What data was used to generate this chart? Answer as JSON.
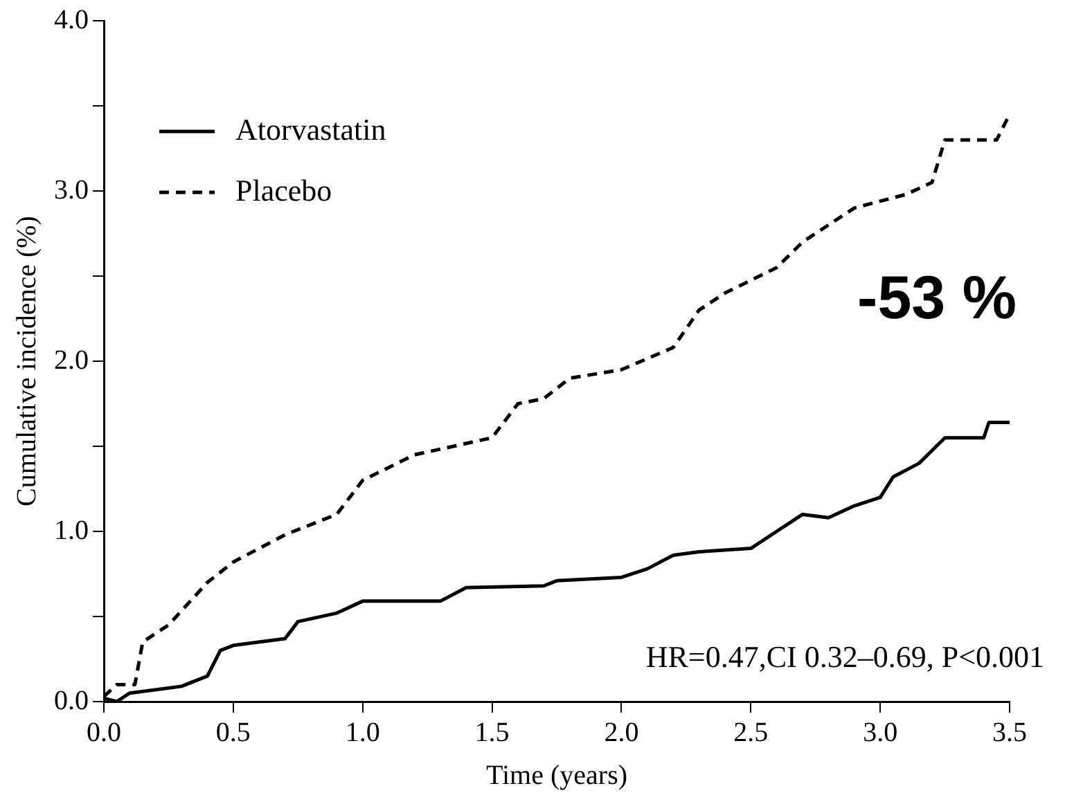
{
  "chart_data": {
    "type": "line",
    "xlabel": "Time (years)",
    "ylabel": "Cumulative incidence (%)",
    "xlim": [
      0,
      3.5
    ],
    "xticks": [
      {
        "value": 0,
        "label": "0.0"
      },
      0.5,
      {
        "value": 1,
        "label": "1.0"
      },
      1.5,
      {
        "value": 2,
        "label": "2.0"
      },
      2.5,
      {
        "value": 3,
        "label": "3.0"
      },
      3.5
    ],
    "ylim": [
      0,
      4
    ],
    "yticks": [
      {
        "value": 0,
        "label": "0.0"
      },
      {
        "value": 0.5,
        "label": null
      },
      {
        "value": 1,
        "label": "1.0"
      },
      {
        "value": 1.5,
        "label": null
      },
      {
        "value": 2,
        "label": "2.0"
      },
      {
        "value": 2.5,
        "label": null
      },
      {
        "value": 3,
        "label": "3.0"
      },
      {
        "value": 3.5,
        "label": null
      },
      {
        "value": 4,
        "label": "4.0"
      }
    ],
    "grid": false,
    "legend": "top left",
    "marker": "none",
    "annotations": [
      "-53 %",
      "HR=0.47,CI 0.32–0.69, P<0.001"
    ],
    "series": [
      {
        "name": "Atorvastatin",
        "color": "#000000",
        "line_style": "solid",
        "x": [
          0,
          0.05,
          0.1,
          0.3,
          0.4,
          0.45,
          0.5,
          0.7,
          0.75,
          0.9,
          1.0,
          1.3,
          1.4,
          1.7,
          1.75,
          2.0,
          2.1,
          2.2,
          2.3,
          2.5,
          2.6,
          2.7,
          2.8,
          2.9,
          3.0,
          3.05,
          3.15,
          3.25,
          3.4,
          3.42,
          3.5
        ],
        "values": [
          0.02,
          0,
          0.05,
          0.09,
          0.15,
          0.3,
          0.33,
          0.37,
          0.47,
          0.52,
          0.59,
          0.59,
          0.67,
          0.68,
          0.71,
          0.73,
          0.78,
          0.86,
          0.88,
          0.9,
          1.0,
          1.1,
          1.08,
          1.15,
          1.2,
          1.32,
          1.4,
          1.55,
          1.55,
          1.64,
          1.64
        ]
      },
      {
        "name": "Placebo",
        "color": "#000000",
        "line_style": "dashed",
        "x": [
          0,
          0.05,
          0.12,
          0.15,
          0.25,
          0.4,
          0.5,
          0.7,
          0.9,
          1.0,
          1.2,
          1.5,
          1.6,
          1.7,
          1.8,
          2.0,
          2.2,
          2.3,
          2.4,
          2.6,
          2.7,
          2.9,
          3.1,
          3.2,
          3.25,
          3.45,
          3.5
        ],
        "values": [
          0.03,
          0.1,
          0.1,
          0.35,
          0.45,
          0.7,
          0.82,
          0.98,
          1.1,
          1.3,
          1.45,
          1.55,
          1.75,
          1.78,
          1.9,
          1.95,
          2.08,
          2.3,
          2.4,
          2.55,
          2.7,
          2.9,
          2.98,
          3.05,
          3.3,
          3.3,
          3.45
        ]
      }
    ]
  }
}
